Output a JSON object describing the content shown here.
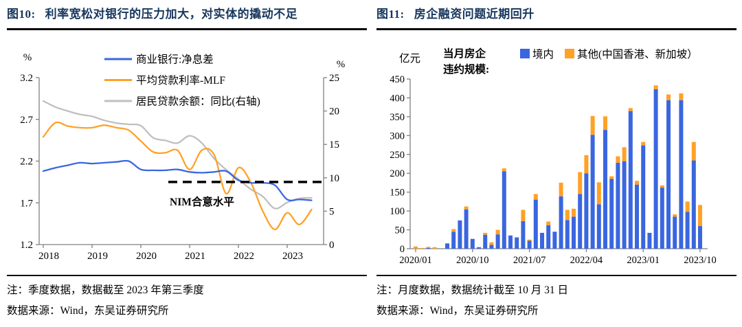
{
  "colors": {
    "title_navy": "#17365d",
    "series_blue": "#3a66df",
    "series_orange": "#ffa126",
    "series_gray": "#bfbfbf",
    "axis_gray": "#808080",
    "reference_black": "#000000"
  },
  "left_panel": {
    "title_prefix": "图10:",
    "title": "利率宽松对银行的压力加大，对实体的撬动不足",
    "note_line1": "注：季度数据，数据截至 2023 年第三季度",
    "note_line2": "数据来源：Wind，东吴证券研究所"
  },
  "right_panel": {
    "title_prefix": "图11:",
    "title": "房企融资问题近期回升",
    "note_line1": "注：月度数据，数据统计截至 10 月 31 日",
    "note_line2": "数据来源：Wind，东吴证券研究所"
  },
  "chart_data": [
    {
      "type": "line",
      "panel": "图10",
      "left_axis": {
        "unit": "%",
        "min": 1.2,
        "max": 3.2,
        "ticks": [
          3.2,
          2.7,
          2.2,
          1.7,
          1.2
        ]
      },
      "right_axis": {
        "unit": "%",
        "min": 0,
        "max": 25,
        "ticks": [
          25,
          20,
          15,
          10,
          5,
          0
        ]
      },
      "x_tick_labels": [
        "2018",
        "2019",
        "2020",
        "2021",
        "2022",
        "2023"
      ],
      "categories": [
        "2018Q1",
        "2018Q2",
        "2018Q3",
        "2018Q4",
        "2019Q1",
        "2019Q2",
        "2019Q3",
        "2019Q4",
        "2020Q1",
        "2020Q2",
        "2020Q3",
        "2020Q4",
        "2021Q1",
        "2021Q2",
        "2021Q3",
        "2021Q4",
        "2022Q1",
        "2022Q2",
        "2022Q3",
        "2022Q4",
        "2023Q1",
        "2023Q2",
        "2023Q3"
      ],
      "series": [
        {
          "name": "商业银行:净息差",
          "axis": "left",
          "color": "#3a66df",
          "values": [
            2.08,
            2.12,
            2.15,
            2.18,
            2.17,
            2.18,
            2.19,
            2.2,
            2.1,
            2.09,
            2.09,
            2.1,
            2.07,
            2.06,
            2.07,
            2.08,
            1.97,
            1.94,
            1.94,
            1.91,
            1.74,
            1.74,
            1.73
          ]
        },
        {
          "name": "平均贷款利率-MLF",
          "axis": "left",
          "color": "#ffa126",
          "values": [
            2.49,
            2.66,
            2.62,
            2.6,
            2.6,
            2.63,
            2.6,
            2.57,
            2.44,
            2.31,
            2.3,
            2.33,
            2.1,
            2.33,
            2.28,
            1.81,
            2.12,
            1.95,
            1.6,
            1.38,
            1.58,
            1.44,
            1.62
          ]
        },
        {
          "name": "居民贷款余额：同比(右轴)",
          "axis": "right",
          "color": "#bfbfbf",
          "values": [
            21.5,
            20.6,
            20.0,
            19.5,
            19.2,
            18.6,
            18.2,
            18.0,
            17.8,
            16.0,
            15.6,
            15.2,
            16.3,
            15.2,
            12.9,
            11.2,
            9.8,
            8.3,
            7.2,
            5.4,
            6.3,
            6.9,
            7.0
          ]
        }
      ],
      "dashed_reference_line": {
        "value": 1.95,
        "label": "NIM合意水平",
        "color": "#000000"
      }
    },
    {
      "type": "stacked-bar",
      "panel": "图11",
      "y_axis": {
        "unit": "亿元",
        "min": 0,
        "max": 450,
        "tick_step": 50
      },
      "header_label": "当月房企违约规模:",
      "header_label_lines": [
        "当月房企",
        "违约规模:"
      ],
      "x_tick_labels": [
        "2020/01",
        "2020/10",
        "2021/07",
        "2022/04",
        "2023/01",
        "2023/10"
      ],
      "tick_month_indices": [
        0,
        9,
        18,
        27,
        36,
        45
      ],
      "categories": [
        "2020/01",
        "2020/02",
        "2020/03",
        "2020/04",
        "2020/05",
        "2020/06",
        "2020/07",
        "2020/08",
        "2020/09",
        "2020/10",
        "2020/11",
        "2020/12",
        "2021/01",
        "2021/02",
        "2021/03",
        "2021/04",
        "2021/05",
        "2021/06",
        "2021/07",
        "2021/08",
        "2021/09",
        "2021/10",
        "2021/11",
        "2021/12",
        "2022/01",
        "2022/02",
        "2022/03",
        "2022/04",
        "2022/05",
        "2022/06",
        "2022/07",
        "2022/08",
        "2022/09",
        "2022/10",
        "2022/11",
        "2022/12",
        "2023/01",
        "2023/02",
        "2023/03",
        "2023/04",
        "2023/05",
        "2023/06",
        "2023/07",
        "2023/08",
        "2023/09",
        "2023/10"
      ],
      "series": [
        {
          "name": "境内",
          "color": "#3a66df",
          "values": [
            0,
            0,
            2,
            0,
            0,
            14,
            45,
            75,
            104,
            26,
            4,
            37,
            10,
            38,
            205,
            35,
            30,
            73,
            21,
            130,
            42,
            62,
            45,
            139,
            76,
            85,
            145,
            200,
            302,
            118,
            315,
            185,
            228,
            232,
            365,
            170,
            274,
            42,
            423,
            162,
            394,
            85,
            394,
            98,
            234,
            60
          ]
        },
        {
          "name": "其他(中国香港、新加坡）",
          "color": "#ffa126",
          "values": [
            6,
            2,
            3,
            4,
            0,
            0,
            7,
            0,
            8,
            0,
            0,
            5,
            7,
            12,
            8,
            0,
            0,
            30,
            3,
            15,
            0,
            10,
            0,
            36,
            27,
            21,
            58,
            48,
            50,
            58,
            36,
            7,
            17,
            37,
            8,
            10,
            9,
            0,
            10,
            6,
            15,
            6,
            18,
            27,
            49,
            56
          ]
        }
      ]
    }
  ]
}
